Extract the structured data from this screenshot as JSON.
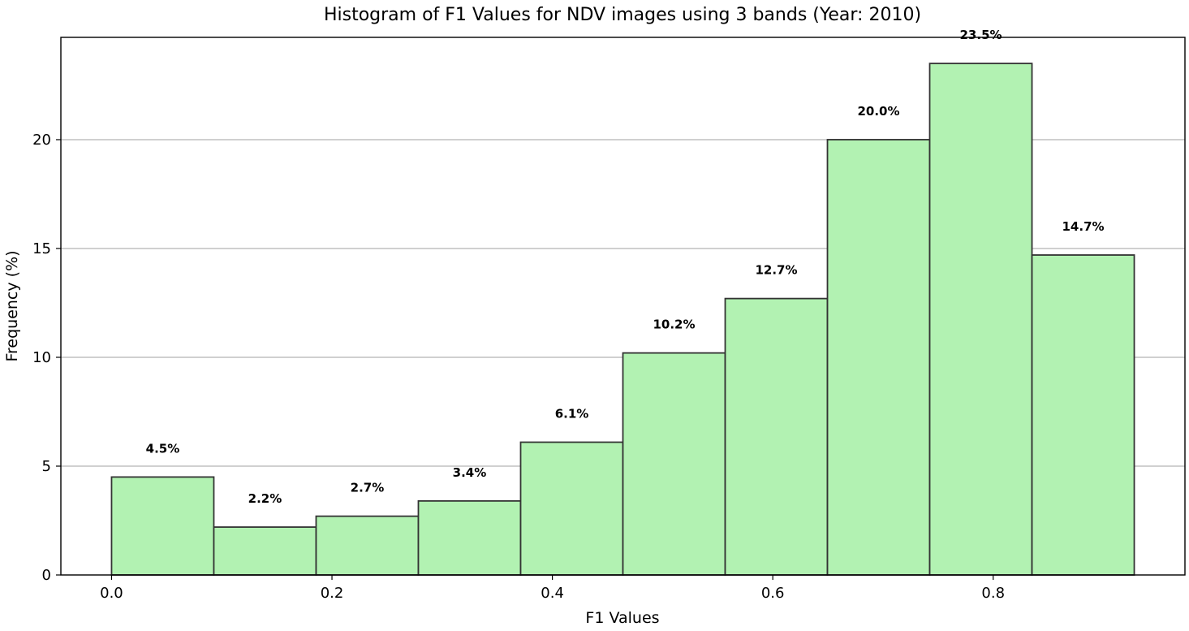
{
  "chart_data": {
    "type": "bar",
    "title": "Histogram of F1 Values for NDV images using 3 bands (Year: 2010)",
    "xlabel": "F1 Values",
    "ylabel": "Frequency (%)",
    "bin_edges": [
      0.0,
      0.0928,
      0.1856,
      0.2784,
      0.3712,
      0.464,
      0.5568,
      0.6496,
      0.7424,
      0.8352,
      0.928
    ],
    "values": [
      4.5,
      2.2,
      2.7,
      3.4,
      6.1,
      10.2,
      12.7,
      20.0,
      23.5,
      14.7
    ],
    "labels": [
      "4.5%",
      "2.2%",
      "2.7%",
      "3.4%",
      "6.1%",
      "10.2%",
      "12.7%",
      "20.0%",
      "23.5%",
      "14.7%"
    ],
    "xlim": [
      -0.046,
      0.974
    ],
    "ylim": [
      0,
      24.7
    ],
    "xticks": [
      0.0,
      0.2,
      0.4,
      0.6,
      0.8
    ],
    "xtick_labels": [
      "0.0",
      "0.2",
      "0.4",
      "0.6",
      "0.8"
    ],
    "yticks": [
      0,
      5,
      10,
      15,
      20
    ],
    "ytick_labels": [
      "0",
      "5",
      "10",
      "15",
      "20"
    ],
    "grid": "y",
    "bar_color": "#b2f2b2",
    "edge_color": "#333333",
    "grid_color": "#c0c0c0"
  }
}
